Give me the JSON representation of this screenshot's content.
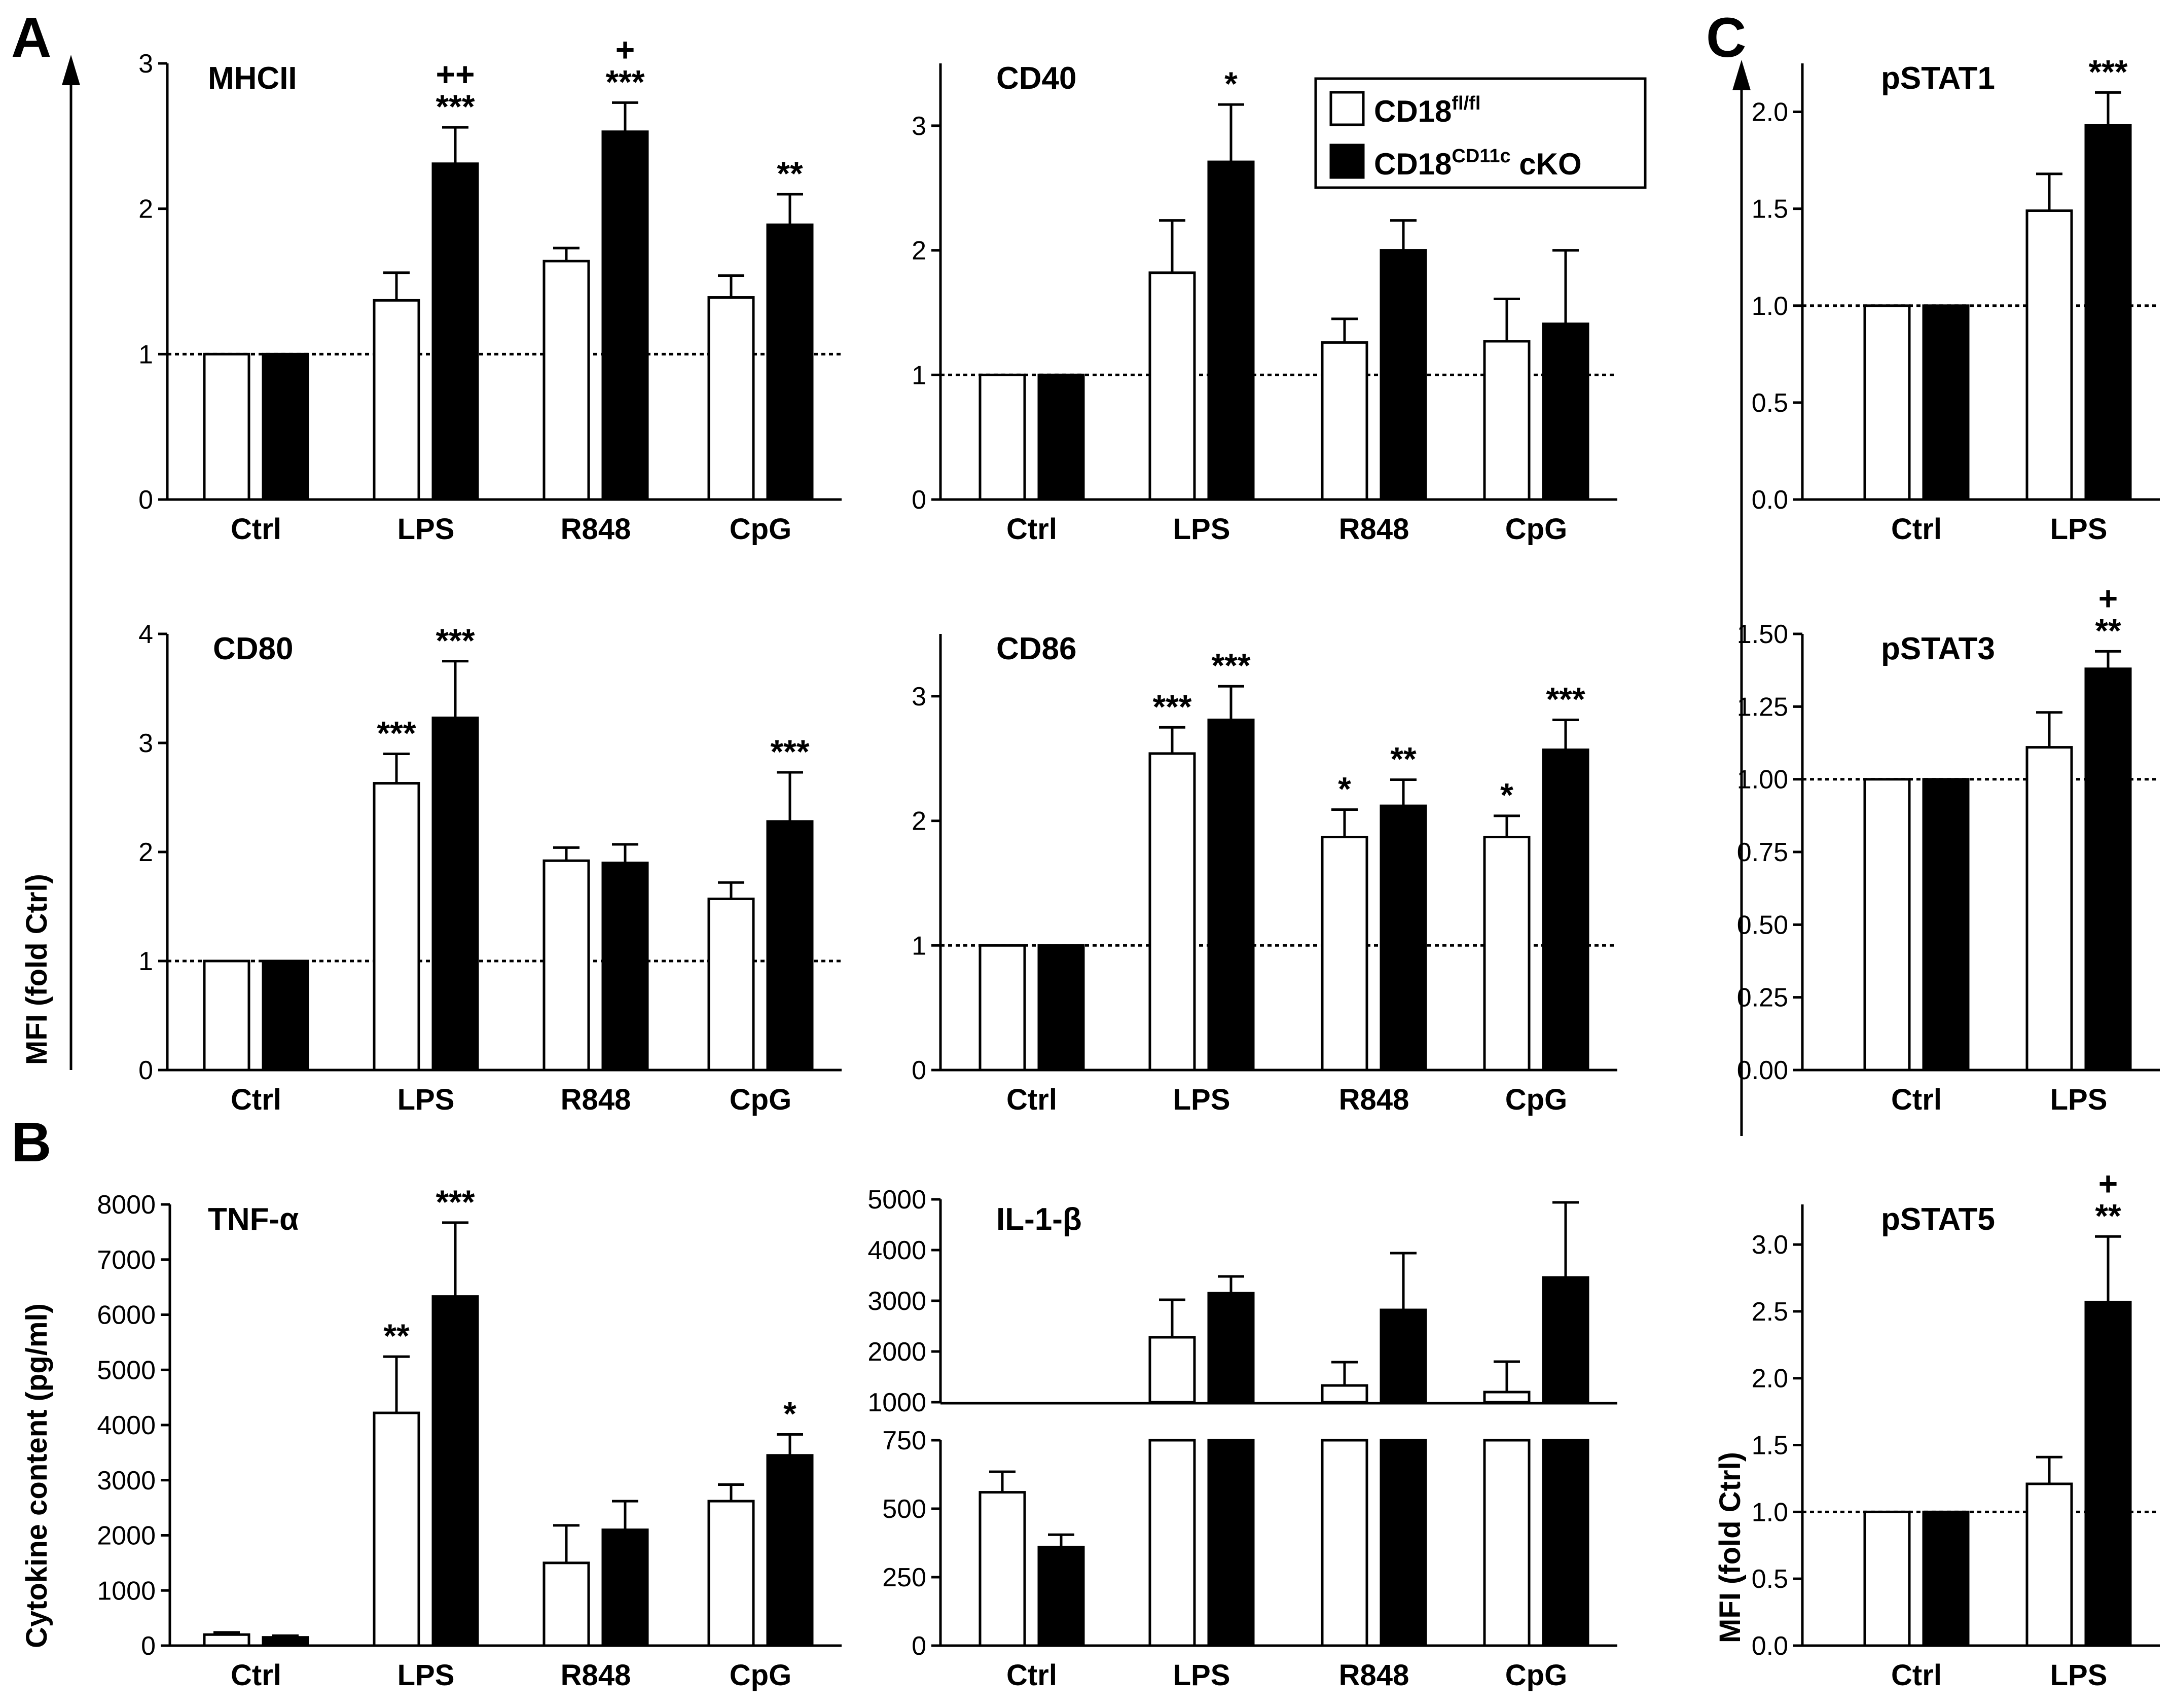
{
  "figure": {
    "panel_letters": [
      "A",
      "B",
      "C"
    ],
    "ylabel_A": "MFI (fold Ctrl)",
    "ylabel_B": "Cytokine content (pg/ml)",
    "ylabel_C": "MFI (fold Ctrl)"
  },
  "legend": {
    "items": [
      {
        "base": "CD18",
        "sup": "fl/fl",
        "suffix": "",
        "fill": "#ffffff"
      },
      {
        "base": "CD18",
        "sup": "CD11c",
        "suffix": " cKO",
        "fill": "#000000"
      }
    ]
  },
  "colors": {
    "wt": "#ffffff",
    "cko": "#000000",
    "stroke": "#000000"
  },
  "chart_data": [
    {
      "id": "mhcii",
      "type": "bar",
      "title": "MHCII",
      "categories": [
        "Ctrl",
        "LPS",
        "R848",
        "CpG"
      ],
      "series": [
        {
          "name": "CD18fl/fl",
          "values": [
            1.0,
            1.37,
            1.64,
            1.39
          ],
          "errors": [
            0,
            0.19,
            0.09,
            0.15
          ],
          "sig": [
            "",
            "",
            "",
            ""
          ]
        },
        {
          "name": "CD18CD11c cKO",
          "values": [
            1.0,
            2.31,
            2.53,
            1.89
          ],
          "errors": [
            0,
            0.25,
            0.2,
            0.21
          ],
          "sig": [
            "",
            "***",
            "***",
            "**"
          ],
          "sig2": [
            "",
            "++",
            "+",
            ""
          ]
        }
      ],
      "ylim": [
        0,
        3
      ],
      "yticks": [
        0,
        1,
        2,
        3
      ],
      "refline": 1
    },
    {
      "id": "cd40",
      "type": "bar",
      "title": "CD40",
      "categories": [
        "Ctrl",
        "LPS",
        "R848",
        "CpG"
      ],
      "series": [
        {
          "name": "CD18fl/fl",
          "values": [
            1.0,
            1.82,
            1.26,
            1.27
          ],
          "errors": [
            0,
            0.42,
            0.19,
            0.34
          ],
          "sig": [
            "",
            "",
            "",
            ""
          ]
        },
        {
          "name": "CD18CD11c cKO",
          "values": [
            1.0,
            2.71,
            2.0,
            1.41
          ],
          "errors": [
            0,
            0.46,
            0.24,
            0.59
          ],
          "sig": [
            "",
            "*",
            "",
            ""
          ]
        }
      ],
      "ylim": [
        0,
        3.5
      ],
      "yticks": [
        0,
        1,
        2,
        3
      ],
      "refline": 1
    },
    {
      "id": "cd80",
      "type": "bar",
      "title": "CD80",
      "categories": [
        "Ctrl",
        "LPS",
        "R848",
        "CpG"
      ],
      "series": [
        {
          "name": "CD18fl/fl",
          "values": [
            1.0,
            2.63,
            1.92,
            1.57
          ],
          "errors": [
            0,
            0.27,
            0.12,
            0.15
          ],
          "sig": [
            "",
            "***",
            "",
            ""
          ]
        },
        {
          "name": "CD18CD11c cKO",
          "values": [
            1.0,
            3.23,
            1.9,
            2.28
          ],
          "errors": [
            0,
            0.52,
            0.17,
            0.45
          ],
          "sig": [
            "",
            "***",
            "",
            "***"
          ]
        }
      ],
      "ylim": [
        0,
        4
      ],
      "yticks": [
        0,
        1,
        2,
        3,
        4
      ],
      "refline": 1
    },
    {
      "id": "cd86",
      "type": "bar",
      "title": "CD86",
      "categories": [
        "Ctrl",
        "LPS",
        "R848",
        "CpG"
      ],
      "series": [
        {
          "name": "CD18fl/fl",
          "values": [
            1.0,
            2.54,
            1.87,
            1.87
          ],
          "errors": [
            0,
            0.21,
            0.22,
            0.17
          ],
          "sig": [
            "",
            "***",
            "*",
            "*"
          ]
        },
        {
          "name": "CD18CD11c cKO",
          "values": [
            1.0,
            2.81,
            2.12,
            2.57
          ],
          "errors": [
            0,
            0.27,
            0.21,
            0.24
          ],
          "sig": [
            "",
            "***",
            "**",
            "***"
          ]
        }
      ],
      "ylim": [
        0,
        3.5
      ],
      "yticks": [
        0,
        1,
        2,
        3
      ],
      "refline": 1
    },
    {
      "id": "tnfa",
      "type": "bar",
      "title": "TNF-α",
      "categories": [
        "Ctrl",
        "LPS",
        "R848",
        "CpG"
      ],
      "series": [
        {
          "name": "CD18fl/fl",
          "values": [
            200,
            4220,
            1500,
            2620
          ],
          "errors": [
            40,
            1020,
            680,
            300
          ],
          "sig": [
            "",
            "**",
            "",
            ""
          ]
        },
        {
          "name": "CD18CD11c cKO",
          "values": [
            150,
            6330,
            2100,
            3450
          ],
          "errors": [
            30,
            1340,
            520,
            380
          ],
          "sig": [
            "",
            "***",
            "",
            "*"
          ]
        }
      ],
      "ylim": [
        0,
        8000
      ],
      "yticks": [
        0,
        1000,
        2000,
        3000,
        4000,
        5000,
        6000,
        7000,
        8000
      ]
    },
    {
      "id": "il1b",
      "type": "bar",
      "title": "IL-1-β",
      "broken_axis": true,
      "categories": [
        "Ctrl",
        "LPS",
        "R848",
        "CpG"
      ],
      "series": [
        {
          "name": "CD18fl/fl",
          "values": [
            560,
            2280,
            1330,
            1200
          ],
          "errors": [
            75,
            740,
            460,
            600
          ],
          "sig": [
            "",
            "",
            "",
            ""
          ]
        },
        {
          "name": "CD18CD11c cKO",
          "values": [
            360,
            3150,
            2820,
            3460
          ],
          "errors": [
            45,
            330,
            1120,
            1480
          ],
          "sig": [
            "",
            "",
            "",
            ""
          ]
        }
      ],
      "lower_range": [
        0,
        750
      ],
      "lower_yticks": [
        0,
        250,
        500,
        750
      ],
      "upper_range": [
        1000,
        5000
      ],
      "upper_yticks": [
        1000,
        2000,
        3000,
        4000,
        5000
      ]
    },
    {
      "id": "pstat1",
      "type": "bar",
      "title": "pSTAT1",
      "categories": [
        "Ctrl",
        "LPS"
      ],
      "series": [
        {
          "name": "CD18fl/fl",
          "values": [
            1.0,
            1.49
          ],
          "errors": [
            0,
            0.19
          ],
          "sig": [
            "",
            ""
          ]
        },
        {
          "name": "CD18CD11c cKO",
          "values": [
            1.0,
            1.93
          ],
          "errors": [
            0,
            0.17
          ],
          "sig": [
            "",
            "***"
          ]
        }
      ],
      "ylim": [
        0,
        2.25
      ],
      "yticks": [
        "0.0",
        "0.5",
        "1.0",
        "1.5",
        "2.0"
      ],
      "refline": 1
    },
    {
      "id": "pstat3",
      "type": "bar",
      "title": "pSTAT3",
      "categories": [
        "Ctrl",
        "LPS"
      ],
      "series": [
        {
          "name": "CD18fl/fl",
          "values": [
            1.0,
            1.11
          ],
          "errors": [
            0,
            0.12
          ],
          "sig": [
            "",
            ""
          ]
        },
        {
          "name": "CD18CD11c cKO",
          "values": [
            1.0,
            1.38
          ],
          "errors": [
            0,
            0.06
          ],
          "sig": [
            "",
            "**"
          ],
          "sig2": [
            "",
            "+"
          ]
        }
      ],
      "ylim": [
        0,
        1.5
      ],
      "yticks": [
        "0.00",
        "0.25",
        "0.50",
        "0.75",
        "1.00",
        "1.25",
        "1.50"
      ],
      "refline": 1
    },
    {
      "id": "pstat5",
      "type": "bar",
      "title": "pSTAT5",
      "categories": [
        "Ctrl",
        "LPS"
      ],
      "series": [
        {
          "name": "CD18fl/fl",
          "values": [
            1.0,
            1.21
          ],
          "errors": [
            0,
            0.2
          ],
          "sig": [
            "",
            ""
          ]
        },
        {
          "name": "CD18CD11c cKO",
          "values": [
            1.0,
            2.57
          ],
          "errors": [
            0,
            0.49
          ],
          "sig": [
            "",
            "**"
          ],
          "sig2": [
            "",
            "+"
          ]
        }
      ],
      "ylim": [
        0,
        3.3
      ],
      "yticks": [
        "0.0",
        "0.5",
        "1.0",
        "1.5",
        "2.0",
        "2.5",
        "3.0"
      ],
      "refline": 1
    }
  ]
}
